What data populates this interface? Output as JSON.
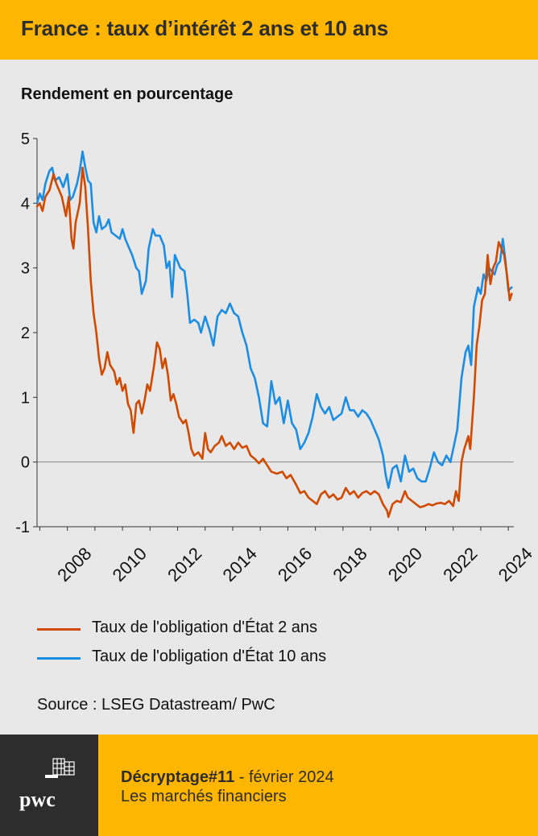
{
  "header": {
    "title": "France : taux d’intérêt 2 ans et 10 ans"
  },
  "chart_header": {
    "ylabel": "Rendement en pourcentage"
  },
  "chart_data": {
    "type": "line",
    "title": "France : taux d’intérêt 2 ans et 10 ans",
    "ylabel": "Rendement en pourcentage",
    "xlabel": "",
    "ylim": [
      -1,
      5
    ],
    "xlim": [
      2006.9,
      2024.2
    ],
    "yticks": [
      -1,
      0,
      1,
      2,
      3,
      4,
      5
    ],
    "xticks": [
      2008,
      2010,
      2012,
      2014,
      2016,
      2018,
      2020,
      2022,
      2024
    ],
    "series": [
      {
        "name": "Taux de l'obligation d'État 2 ans",
        "color": "#d04a02",
        "points": [
          [
            2006.9,
            3.95
          ],
          [
            2007.0,
            4.0
          ],
          [
            2007.1,
            3.88
          ],
          [
            2007.2,
            4.1
          ],
          [
            2007.35,
            4.2
          ],
          [
            2007.5,
            4.45
          ],
          [
            2007.6,
            4.3
          ],
          [
            2007.8,
            4.1
          ],
          [
            2007.95,
            3.8
          ],
          [
            2008.05,
            4.1
          ],
          [
            2008.15,
            3.45
          ],
          [
            2008.22,
            3.3
          ],
          [
            2008.3,
            3.7
          ],
          [
            2008.45,
            4.0
          ],
          [
            2008.55,
            4.55
          ],
          [
            2008.65,
            4.25
          ],
          [
            2008.75,
            3.6
          ],
          [
            2008.85,
            2.8
          ],
          [
            2008.95,
            2.3
          ],
          [
            2009.05,
            2.0
          ],
          [
            2009.15,
            1.6
          ],
          [
            2009.25,
            1.35
          ],
          [
            2009.35,
            1.45
          ],
          [
            2009.45,
            1.7
          ],
          [
            2009.55,
            1.5
          ],
          [
            2009.7,
            1.4
          ],
          [
            2009.8,
            1.2
          ],
          [
            2009.9,
            1.3
          ],
          [
            2010.0,
            1.1
          ],
          [
            2010.1,
            1.2
          ],
          [
            2010.2,
            0.9
          ],
          [
            2010.3,
            0.8
          ],
          [
            2010.4,
            0.45
          ],
          [
            2010.5,
            0.9
          ],
          [
            2010.6,
            0.95
          ],
          [
            2010.7,
            0.75
          ],
          [
            2010.8,
            0.95
          ],
          [
            2010.9,
            1.2
          ],
          [
            2011.0,
            1.1
          ],
          [
            2011.15,
            1.5
          ],
          [
            2011.25,
            1.85
          ],
          [
            2011.35,
            1.75
          ],
          [
            2011.45,
            1.45
          ],
          [
            2011.55,
            1.6
          ],
          [
            2011.65,
            1.35
          ],
          [
            2011.75,
            0.95
          ],
          [
            2011.85,
            1.05
          ],
          [
            2011.95,
            0.9
          ],
          [
            2012.05,
            0.7
          ],
          [
            2012.2,
            0.6
          ],
          [
            2012.3,
            0.65
          ],
          [
            2012.4,
            0.45
          ],
          [
            2012.5,
            0.2
          ],
          [
            2012.6,
            0.1
          ],
          [
            2012.75,
            0.15
          ],
          [
            2012.9,
            0.05
          ],
          [
            2013.0,
            0.45
          ],
          [
            2013.1,
            0.2
          ],
          [
            2013.2,
            0.15
          ],
          [
            2013.35,
            0.25
          ],
          [
            2013.5,
            0.3
          ],
          [
            2013.6,
            0.4
          ],
          [
            2013.75,
            0.25
          ],
          [
            2013.9,
            0.3
          ],
          [
            2014.05,
            0.2
          ],
          [
            2014.2,
            0.3
          ],
          [
            2014.35,
            0.22
          ],
          [
            2014.5,
            0.25
          ],
          [
            2014.65,
            0.1
          ],
          [
            2014.8,
            0.05
          ],
          [
            2014.95,
            -0.02
          ],
          [
            2015.1,
            0.05
          ],
          [
            2015.25,
            -0.05
          ],
          [
            2015.4,
            -0.15
          ],
          [
            2015.6,
            -0.18
          ],
          [
            2015.8,
            -0.15
          ],
          [
            2015.95,
            -0.25
          ],
          [
            2016.1,
            -0.2
          ],
          [
            2016.3,
            -0.35
          ],
          [
            2016.45,
            -0.48
          ],
          [
            2016.6,
            -0.45
          ],
          [
            2016.75,
            -0.55
          ],
          [
            2016.9,
            -0.6
          ],
          [
            2017.05,
            -0.65
          ],
          [
            2017.2,
            -0.5
          ],
          [
            2017.35,
            -0.45
          ],
          [
            2017.5,
            -0.55
          ],
          [
            2017.65,
            -0.5
          ],
          [
            2017.8,
            -0.58
          ],
          [
            2017.95,
            -0.55
          ],
          [
            2018.1,
            -0.4
          ],
          [
            2018.25,
            -0.5
          ],
          [
            2018.4,
            -0.45
          ],
          [
            2018.55,
            -0.55
          ],
          [
            2018.7,
            -0.48
          ],
          [
            2018.85,
            -0.45
          ],
          [
            2019.0,
            -0.5
          ],
          [
            2019.15,
            -0.45
          ],
          [
            2019.3,
            -0.5
          ],
          [
            2019.45,
            -0.65
          ],
          [
            2019.6,
            -0.75
          ],
          [
            2019.65,
            -0.85
          ],
          [
            2019.8,
            -0.65
          ],
          [
            2019.95,
            -0.6
          ],
          [
            2020.1,
            -0.62
          ],
          [
            2020.25,
            -0.45
          ],
          [
            2020.35,
            -0.55
          ],
          [
            2020.5,
            -0.6
          ],
          [
            2020.65,
            -0.65
          ],
          [
            2020.8,
            -0.7
          ],
          [
            2020.95,
            -0.68
          ],
          [
            2021.1,
            -0.65
          ],
          [
            2021.25,
            -0.67
          ],
          [
            2021.4,
            -0.64
          ],
          [
            2021.55,
            -0.63
          ],
          [
            2021.7,
            -0.65
          ],
          [
            2021.85,
            -0.6
          ],
          [
            2022.0,
            -0.68
          ],
          [
            2022.1,
            -0.45
          ],
          [
            2022.2,
            -0.6
          ],
          [
            2022.3,
            0.0
          ],
          [
            2022.4,
            0.2
          ],
          [
            2022.55,
            0.4
          ],
          [
            2022.62,
            0.2
          ],
          [
            2022.75,
            1.0
          ],
          [
            2022.85,
            1.8
          ],
          [
            2022.95,
            2.1
          ],
          [
            2023.05,
            2.5
          ],
          [
            2023.15,
            2.6
          ],
          [
            2023.25,
            3.2
          ],
          [
            2023.35,
            2.75
          ],
          [
            2023.45,
            3.0
          ],
          [
            2023.55,
            3.1
          ],
          [
            2023.65,
            3.4
          ],
          [
            2023.75,
            3.3
          ],
          [
            2023.85,
            3.2
          ],
          [
            2023.95,
            2.9
          ],
          [
            2024.05,
            2.5
          ],
          [
            2024.12,
            2.6
          ]
        ]
      },
      {
        "name": "Taux de l'obligation d'État 10 ans",
        "color": "#1b8de3",
        "points": [
          [
            2006.9,
            4.0
          ],
          [
            2007.0,
            4.15
          ],
          [
            2007.1,
            4.05
          ],
          [
            2007.2,
            4.3
          ],
          [
            2007.35,
            4.5
          ],
          [
            2007.45,
            4.55
          ],
          [
            2007.55,
            4.35
          ],
          [
            2007.7,
            4.4
          ],
          [
            2007.85,
            4.25
          ],
          [
            2008.0,
            4.45
          ],
          [
            2008.1,
            4.05
          ],
          [
            2008.2,
            4.1
          ],
          [
            2008.35,
            4.3
          ],
          [
            2008.45,
            4.5
          ],
          [
            2008.55,
            4.8
          ],
          [
            2008.65,
            4.55
          ],
          [
            2008.75,
            4.35
          ],
          [
            2008.85,
            4.3
          ],
          [
            2008.95,
            3.7
          ],
          [
            2009.05,
            3.55
          ],
          [
            2009.15,
            3.8
          ],
          [
            2009.25,
            3.6
          ],
          [
            2009.4,
            3.65
          ],
          [
            2009.5,
            3.75
          ],
          [
            2009.6,
            3.55
          ],
          [
            2009.75,
            3.5
          ],
          [
            2009.9,
            3.45
          ],
          [
            2010.0,
            3.6
          ],
          [
            2010.1,
            3.45
          ],
          [
            2010.2,
            3.35
          ],
          [
            2010.35,
            3.2
          ],
          [
            2010.5,
            3.0
          ],
          [
            2010.6,
            2.95
          ],
          [
            2010.7,
            2.6
          ],
          [
            2010.85,
            2.8
          ],
          [
            2010.95,
            3.3
          ],
          [
            2011.1,
            3.6
          ],
          [
            2011.2,
            3.5
          ],
          [
            2011.35,
            3.5
          ],
          [
            2011.5,
            3.35
          ],
          [
            2011.6,
            3.0
          ],
          [
            2011.7,
            3.1
          ],
          [
            2011.8,
            2.55
          ],
          [
            2011.9,
            3.2
          ],
          [
            2012.0,
            3.1
          ],
          [
            2012.1,
            3.0
          ],
          [
            2012.25,
            2.95
          ],
          [
            2012.35,
            2.6
          ],
          [
            2012.45,
            2.15
          ],
          [
            2012.6,
            2.2
          ],
          [
            2012.75,
            2.15
          ],
          [
            2012.85,
            2.0
          ],
          [
            2013.0,
            2.25
          ],
          [
            2013.15,
            2.05
          ],
          [
            2013.3,
            1.8
          ],
          [
            2013.45,
            2.25
          ],
          [
            2013.6,
            2.35
          ],
          [
            2013.75,
            2.3
          ],
          [
            2013.9,
            2.45
          ],
          [
            2014.05,
            2.3
          ],
          [
            2014.2,
            2.25
          ],
          [
            2014.35,
            2.0
          ],
          [
            2014.5,
            1.8
          ],
          [
            2014.65,
            1.45
          ],
          [
            2014.8,
            1.3
          ],
          [
            2014.95,
            1.0
          ],
          [
            2015.1,
            0.6
          ],
          [
            2015.25,
            0.55
          ],
          [
            2015.4,
            1.25
          ],
          [
            2015.55,
            0.9
          ],
          [
            2015.7,
            1.0
          ],
          [
            2015.85,
            0.6
          ],
          [
            2016.0,
            0.95
          ],
          [
            2016.15,
            0.6
          ],
          [
            2016.3,
            0.5
          ],
          [
            2016.45,
            0.2
          ],
          [
            2016.6,
            0.3
          ],
          [
            2016.75,
            0.45
          ],
          [
            2016.9,
            0.7
          ],
          [
            2017.05,
            1.05
          ],
          [
            2017.2,
            0.85
          ],
          [
            2017.35,
            0.75
          ],
          [
            2017.5,
            0.85
          ],
          [
            2017.65,
            0.65
          ],
          [
            2017.8,
            0.7
          ],
          [
            2017.95,
            0.75
          ],
          [
            2018.1,
            1.0
          ],
          [
            2018.25,
            0.8
          ],
          [
            2018.4,
            0.8
          ],
          [
            2018.55,
            0.7
          ],
          [
            2018.7,
            0.8
          ],
          [
            2018.85,
            0.75
          ],
          [
            2019.0,
            0.65
          ],
          [
            2019.15,
            0.5
          ],
          [
            2019.3,
            0.35
          ],
          [
            2019.45,
            0.1
          ],
          [
            2019.55,
            -0.2
          ],
          [
            2019.65,
            -0.4
          ],
          [
            2019.8,
            -0.1
          ],
          [
            2019.95,
            -0.05
          ],
          [
            2020.1,
            -0.3
          ],
          [
            2020.25,
            0.1
          ],
          [
            2020.4,
            -0.15
          ],
          [
            2020.55,
            -0.1
          ],
          [
            2020.7,
            -0.25
          ],
          [
            2020.85,
            -0.3
          ],
          [
            2021.0,
            -0.3
          ],
          [
            2021.15,
            -0.1
          ],
          [
            2021.3,
            0.15
          ],
          [
            2021.45,
            0.0
          ],
          [
            2021.6,
            -0.05
          ],
          [
            2021.75,
            0.1
          ],
          [
            2021.9,
            0.0
          ],
          [
            2022.0,
            0.2
          ],
          [
            2022.15,
            0.5
          ],
          [
            2022.3,
            1.3
          ],
          [
            2022.45,
            1.7
          ],
          [
            2022.55,
            1.8
          ],
          [
            2022.65,
            1.5
          ],
          [
            2022.75,
            2.4
          ],
          [
            2022.9,
            2.7
          ],
          [
            2023.0,
            2.6
          ],
          [
            2023.1,
            2.9
          ],
          [
            2023.2,
            2.8
          ],
          [
            2023.3,
            3.0
          ],
          [
            2023.4,
            2.95
          ],
          [
            2023.5,
            2.9
          ],
          [
            2023.6,
            3.05
          ],
          [
            2023.7,
            3.1
          ],
          [
            2023.8,
            3.45
          ],
          [
            2023.9,
            3.1
          ],
          [
            2024.0,
            2.65
          ],
          [
            2024.12,
            2.7
          ]
        ]
      }
    ]
  },
  "legend": {
    "items": [
      {
        "label": "Taux de l'obligation d'État 2 ans",
        "color": "#d04a02"
      },
      {
        "label": "Taux de l'obligation d'État 10 ans",
        "color": "#1b8de3"
      }
    ]
  },
  "source": "Source : LSEG Datastream/ PwC",
  "footer": {
    "title_bold": "Décryptage#11",
    "title_rest": " - février 2024",
    "subtitle": "Les marchés financiers",
    "logo_text": "pwc"
  },
  "colors": {
    "accent": "#ffb600",
    "dark": "#2d2d2d",
    "background": "#e8e8e8"
  }
}
